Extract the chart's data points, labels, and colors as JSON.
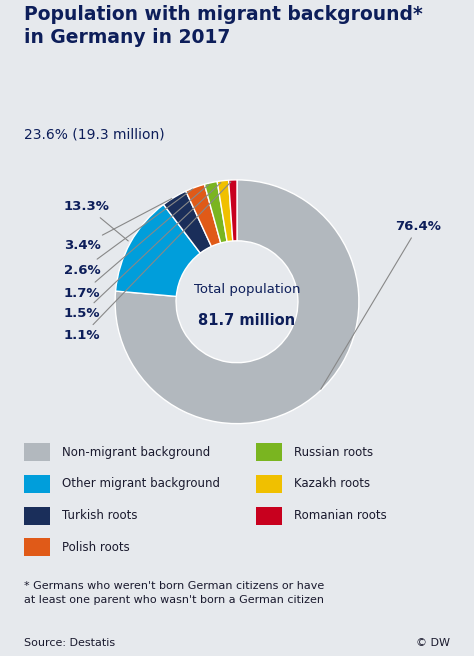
{
  "title_line1": "Population with migrant background*",
  "title_line2": "in Germany in 2017",
  "subtitle": "23.6% (19.3 million)",
  "center_text_line1": "Total population",
  "center_text_line2": "81.7 million",
  "slices": [
    {
      "label": "Non-migrant background",
      "value": 76.4,
      "color": "#b2b8be",
      "pct_label": "76.4%"
    },
    {
      "label": "Other migrant background",
      "value": 13.3,
      "color": "#009edb",
      "pct_label": "13.3%"
    },
    {
      "label": "Turkish roots",
      "value": 3.4,
      "color": "#1a2e5a",
      "pct_label": "3.4%"
    },
    {
      "label": "Polish roots",
      "value": 2.6,
      "color": "#e05a18",
      "pct_label": "2.6%"
    },
    {
      "label": "Russian roots",
      "value": 1.7,
      "color": "#7ab520",
      "pct_label": "1.7%"
    },
    {
      "label": "Kazakh roots",
      "value": 1.5,
      "color": "#f0c000",
      "pct_label": "1.5%"
    },
    {
      "label": "Romanian roots",
      "value": 1.1,
      "color": "#c8001e",
      "pct_label": "1.1%"
    }
  ],
  "background_color": "#e6e9ed",
  "title_color": "#0d1e5a",
  "text_color": "#1a1a2e",
  "footnote_line1": "* Germans who weren't born German citizens or have",
  "footnote_line2": "at least one parent who wasn't born a German citizen",
  "source": "Source: Destatis",
  "copyright": "© DW"
}
